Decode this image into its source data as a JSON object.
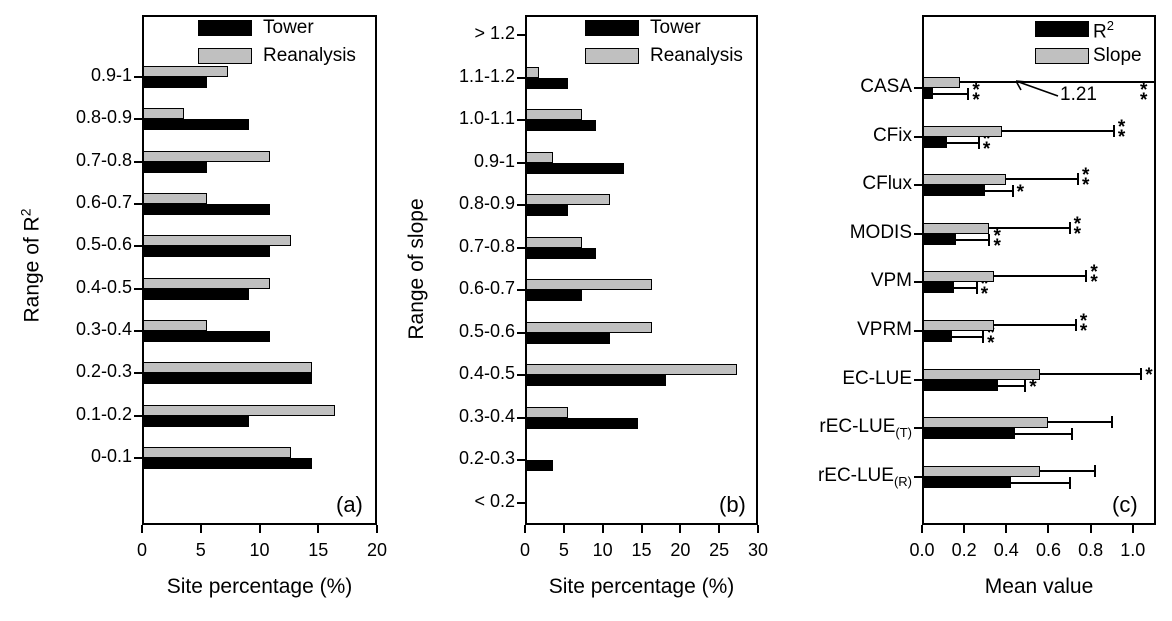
{
  "colors": {
    "tower": "#000000",
    "reanalysis": "#c0c0c0",
    "frame": "#000000",
    "background": "#ffffff"
  },
  "chart_data": [
    {
      "id": "a",
      "type": "bar",
      "orientation": "horizontal",
      "panel_label": "(a)",
      "xlabel": "Site percentage (%)",
      "ylabel": {
        "text": "Range of R",
        "sup": "2"
      },
      "xlim": [
        0,
        20
      ],
      "x_ticks": {
        "values": [
          0,
          5,
          10,
          15,
          20
        ],
        "labels": [
          "0",
          "5",
          "10",
          "15",
          "20"
        ]
      },
      "grid": false,
      "legend": {
        "position": "top-right-inside",
        "entries": [
          {
            "label": "Tower",
            "color": "#000000"
          },
          {
            "label": "Reanalysis",
            "color": "#c0c0c0"
          }
        ]
      },
      "categories": [
        "0.9-1",
        "0.8-0.9",
        "0.7-0.8",
        "0.6-0.7",
        "0.5-0.6",
        "0.4-0.5",
        "0.3-0.4",
        "0.2-0.3",
        "0.1-0.2",
        "0-0.1"
      ],
      "series": [
        {
          "name": "Tower",
          "color": "#000000",
          "values": [
            5.5,
            9.1,
            5.5,
            10.9,
            10.9,
            9.1,
            10.9,
            14.5,
            9.1,
            14.5
          ]
        },
        {
          "name": "Reanalysis",
          "color": "#c0c0c0",
          "values": [
            7.3,
            3.6,
            10.9,
            5.5,
            12.7,
            10.9,
            5.5,
            14.5,
            16.4,
            12.7
          ]
        }
      ]
    },
    {
      "id": "b",
      "type": "bar",
      "orientation": "horizontal",
      "panel_label": "(b)",
      "xlabel": "Site percentage (%)",
      "ylabel": {
        "text": "Range of slope"
      },
      "xlim": [
        0,
        30
      ],
      "x_ticks": {
        "values": [
          0,
          5,
          10,
          15,
          20,
          25,
          30
        ],
        "labels": [
          "0",
          "5",
          "10",
          "15",
          "20",
          "25",
          "30"
        ]
      },
      "grid": false,
      "legend": {
        "position": "top-right-inside",
        "entries": [
          {
            "label": "Tower",
            "color": "#000000"
          },
          {
            "label": "Reanalysis",
            "color": "#c0c0c0"
          }
        ]
      },
      "categories": [
        "> 1.2",
        "1.1-1.2",
        "1.0-1.1",
        "0.9-1",
        "0.8-0.9",
        "0.7-0.8",
        "0.6-0.7",
        "0.5-0.6",
        "0.4-0.5",
        "0.3-0.4",
        "0.2-0.3",
        "< 0.2"
      ],
      "series": [
        {
          "name": "Tower",
          "color": "#000000",
          "values": [
            0,
            5.5,
            9.1,
            12.7,
            5.5,
            9.1,
            7.3,
            10.9,
            18.2,
            14.5,
            3.6,
            0
          ]
        },
        {
          "name": "Reanalysis",
          "color": "#c0c0c0",
          "values": [
            0,
            1.8,
            7.3,
            3.6,
            10.9,
            7.3,
            16.4,
            16.4,
            27.3,
            5.5,
            0,
            0
          ]
        }
      ]
    },
    {
      "id": "c",
      "type": "bar",
      "orientation": "horizontal",
      "panel_label": "(c)",
      "xlabel": "Mean value",
      "xlim": [
        0,
        1.11
      ],
      "x_ticks": {
        "values": [
          0,
          0.2,
          0.4,
          0.6,
          0.8,
          1.0
        ],
        "labels": [
          "0.0",
          "0.2",
          "0.4",
          "0.6",
          "0.8",
          "1.0"
        ]
      },
      "grid": false,
      "legend": {
        "position": "top-right-inside",
        "entries": [
          {
            "label": {
              "text": "R",
              "sup": "2"
            },
            "color": "#000000"
          },
          {
            "label": "Slope",
            "color": "#c0c0c0"
          }
        ]
      },
      "categories": [
        "CASA",
        "CFix",
        "CFlux",
        "MODIS",
        "VPM",
        "VPRM",
        "EC-LUE",
        {
          "text": "rEC-LUE",
          "sub": "(T)"
        },
        {
          "text": "rEC-LUE",
          "sub": "(R)"
        }
      ],
      "series": [
        {
          "name": "R2",
          "color": "#000000",
          "values": [
            0.05,
            0.12,
            0.3,
            0.16,
            0.15,
            0.14,
            0.36,
            0.44,
            0.42
          ],
          "err_high": [
            0.22,
            0.27,
            0.43,
            0.32,
            0.26,
            0.29,
            0.49,
            0.71,
            0.7
          ],
          "sig": [
            "**",
            "**",
            "*",
            "**",
            "**",
            "**",
            "*",
            "",
            ""
          ]
        },
        {
          "name": "Slope",
          "color": "#c0c0c0",
          "values": [
            0.18,
            0.38,
            0.4,
            0.32,
            0.34,
            0.34,
            0.56,
            0.6,
            0.56
          ],
          "err_high": [
            1.21,
            0.91,
            0.74,
            0.7,
            0.78,
            0.73,
            1.04,
            0.9,
            0.82
          ],
          "sig": [
            "**",
            "**",
            "**",
            "**",
            "**",
            "**",
            "*",
            "",
            ""
          ]
        }
      ],
      "annotation": {
        "text": "1.21",
        "target": "CASA Slope upper error limit (clipped at axis edge)"
      }
    }
  ]
}
